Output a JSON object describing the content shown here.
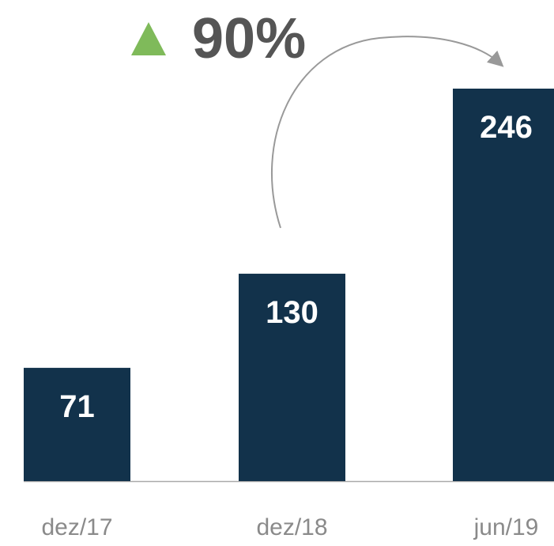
{
  "chart_data": {
    "type": "bar",
    "annotation": "90%",
    "categories": [
      "dez/17",
      "dez/18",
      "jun/19"
    ],
    "values": [
      71,
      130,
      246
    ],
    "color": "#12324b",
    "grid": false
  }
}
